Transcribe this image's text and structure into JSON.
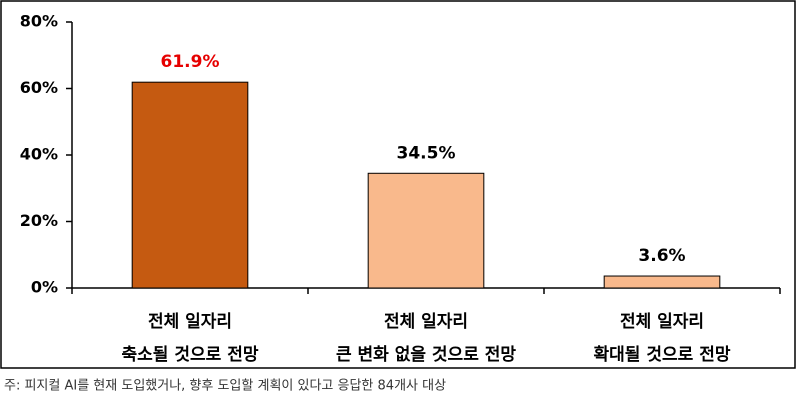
{
  "chart_data": {
    "type": "bar",
    "categories": [
      [
        "전체 일자리",
        "축소될 것으로 전망"
      ],
      [
        "전체 일자리",
        "큰 변화 없을 것으로 전망"
      ],
      [
        "전체 일자리",
        "확대될 것으로 전망"
      ]
    ],
    "values": [
      61.9,
      34.5,
      3.6
    ],
    "value_labels": [
      "61.9%",
      "34.5%",
      "3.6%"
    ],
    "colors": [
      "#c55a11",
      "#f9b98c",
      "#f9b98c"
    ],
    "value_label_colors": [
      "#e60000",
      "#000000",
      "#000000"
    ],
    "ylim": [
      0,
      80
    ],
    "yticks": [
      {
        "value": 0,
        "label": "0%"
      },
      {
        "value": 20,
        "label": "20%"
      },
      {
        "value": 40,
        "label": "40%"
      },
      {
        "value": 60,
        "label": "60%"
      },
      {
        "value": 80,
        "label": "80%"
      }
    ],
    "grid": false,
    "note": "주: 피지컬 AI를 현재 도입했거나, 향후 도입할 계획이 있다고 응답한 84개사 대상"
  }
}
